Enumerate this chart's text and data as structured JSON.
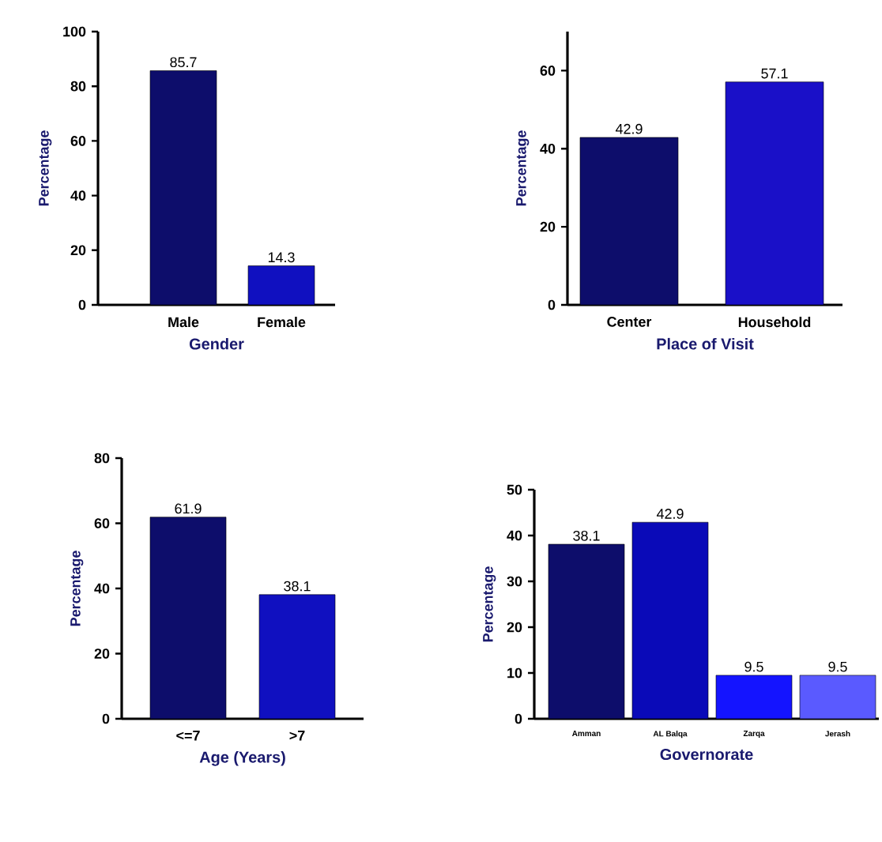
{
  "chart_data": [
    {
      "type": "bar",
      "xlabel": "Gender",
      "ylabel": "Percentage",
      "categories": [
        "Male",
        "Female"
      ],
      "values": [
        85.7,
        14.3
      ],
      "colors": [
        "#0d0d6b",
        "#1010c0"
      ],
      "ylim": [
        0,
        100
      ],
      "yticks": [
        0,
        20,
        40,
        60,
        80,
        100
      ],
      "data_labels": true
    },
    {
      "type": "bar",
      "xlabel": "Place of Visit",
      "ylabel": "Percentage",
      "categories": [
        "Center",
        "Household"
      ],
      "values": [
        42.9,
        57.1
      ],
      "colors": [
        "#0d0d6b",
        "#1a10c8"
      ],
      "ylim": [
        0,
        70
      ],
      "yticks": [
        0,
        20,
        40,
        60
      ],
      "data_labels": true
    },
    {
      "type": "bar",
      "xlabel": "Age (Years)",
      "ylabel": "Percentage",
      "categories": [
        "<=7",
        ">7"
      ],
      "values": [
        61.9,
        38.1
      ],
      "colors": [
        "#0d0d6b",
        "#1010c0"
      ],
      "ylim": [
        0,
        80
      ],
      "yticks": [
        0,
        20,
        40,
        60,
        80
      ],
      "data_labels": true
    },
    {
      "type": "bar",
      "xlabel": "Governorate",
      "ylabel": "Percentage",
      "categories": [
        "Amman",
        "AL Balqa",
        "Zarqa",
        "Jerash"
      ],
      "values": [
        38.1,
        42.9,
        9.5,
        9.5
      ],
      "colors": [
        "#0d0d6b",
        "#0a0ab8",
        "#1414ff",
        "#5a5aff"
      ],
      "ylim": [
        0,
        50
      ],
      "yticks": [
        0,
        10,
        20,
        30,
        40,
        50
      ],
      "data_labels": true
    }
  ]
}
